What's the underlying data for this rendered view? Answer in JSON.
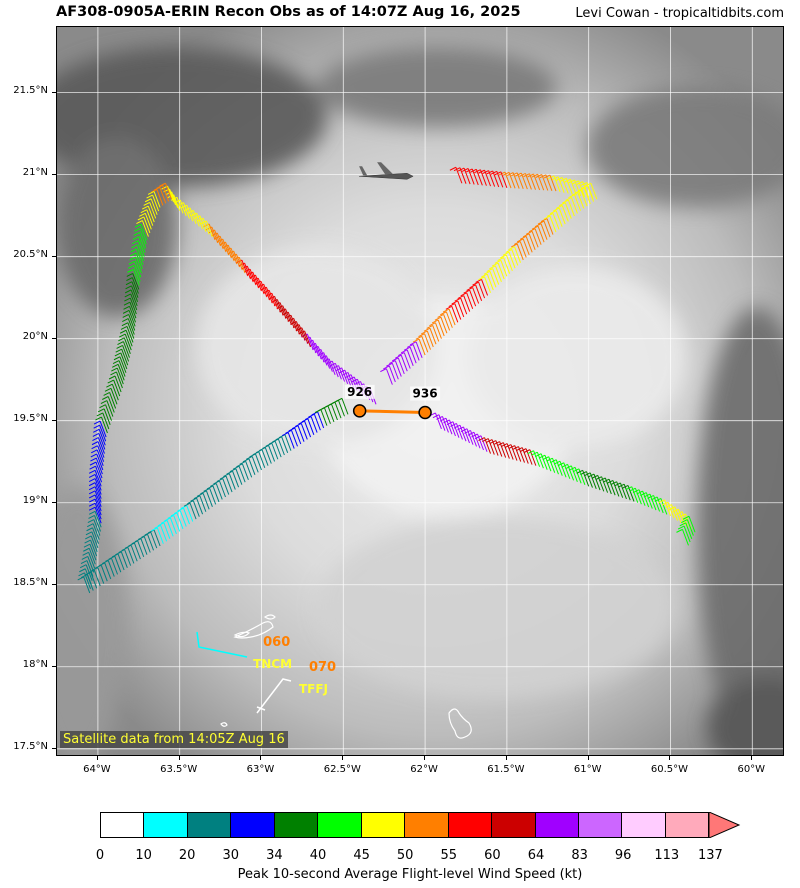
{
  "header": {
    "title": "AF308-0905A-ERIN Recon Obs as of 14:07Z Aug 16, 2025",
    "credit": "Levi Cowan - tropicaltidbits.com"
  },
  "map": {
    "lon_range": [
      -64.25,
      -59.8
    ],
    "lat_range": [
      17.45,
      21.9
    ],
    "lat_ticks": [
      "21.5°N",
      "21°N",
      "20.5°N",
      "20°N",
      "19.5°N",
      "19°N",
      "18.5°N",
      "18°N",
      "17.5°N"
    ],
    "lon_ticks": [
      "64°W",
      "63.5°W",
      "63°W",
      "62.5°W",
      "62°W",
      "61.5°W",
      "61°W",
      "60.5°W",
      "60°W"
    ],
    "satellite_label": "Satellite data from 14:05Z Aug 16",
    "dropsondes": [
      {
        "label": "926",
        "lon": -62.4,
        "lat": 19.56
      },
      {
        "label": "936",
        "lon": -62.0,
        "lat": 19.55
      }
    ],
    "station_labels": [
      {
        "code": "TNCM",
        "value": "060",
        "lon": -63.1,
        "lat": 18.04
      },
      {
        "code": "TFFJ",
        "value": "070",
        "lon": -62.82,
        "lat": 17.89
      }
    ],
    "aircraft_icon": "aircraft-icon"
  },
  "colorbar": {
    "label": "Peak 10-second Average Flight-level Wind Speed (kt)",
    "ticks": [
      "0",
      "10",
      "20",
      "30",
      "34",
      "40",
      "45",
      "50",
      "55",
      "60",
      "64",
      "83",
      "96",
      "113",
      "137"
    ],
    "colors": [
      "#ffffff",
      "#00ffff",
      "#008080",
      "#0000ff",
      "#008000",
      "#00ff00",
      "#ffff00",
      "#ff7f00",
      "#ff0000",
      "#cc0000",
      "#a000ff",
      "#cc66ff",
      "#ffccff",
      "#ffaabb"
    ],
    "extend_color": "#ff7777"
  }
}
